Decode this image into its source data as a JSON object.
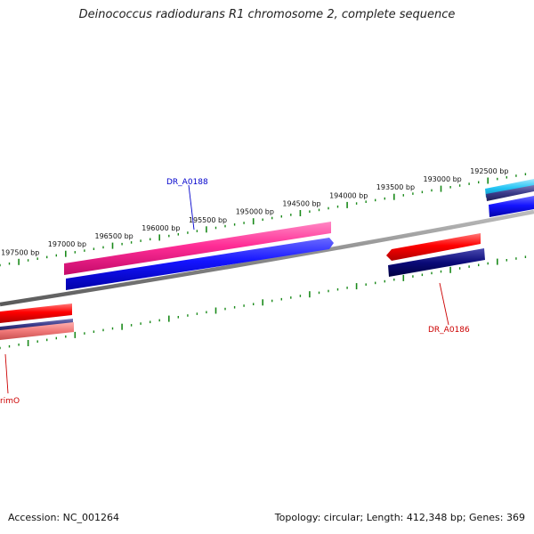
{
  "title": "Deinococcus radiodurans R1 chromosome 2, complete sequence",
  "accession": {
    "label": "Accession:",
    "value": "NC_001264"
  },
  "summary": {
    "topology_label": "Topology:",
    "topology": "circular",
    "length_label": "Length:",
    "length": "412,348 bp",
    "genes_label": "Genes:",
    "genes": "369"
  },
  "tick_labels": [
    "197500 bp",
    "197000 bp",
    "196500 bp",
    "196000 bp",
    "195500 bp",
    "195000 bp",
    "194500 bp",
    "194000 bp",
    "193500 bp",
    "193000 bp",
    "192500 bp"
  ],
  "gene_labels": [
    "DR_A0188",
    "DR_A0186",
    "rimO"
  ],
  "colors": {
    "backbone": "#8a8a8a",
    "tick": "#1a8a1a",
    "forward_pink": "#ff3399",
    "forward_blue": "#1a1aff",
    "reverse_red": "#ff0000",
    "reverse_navy": "#0a0a7a",
    "cyan": "#33ccff",
    "label_blue": "#0000cc",
    "label_red": "#cc0000"
  }
}
